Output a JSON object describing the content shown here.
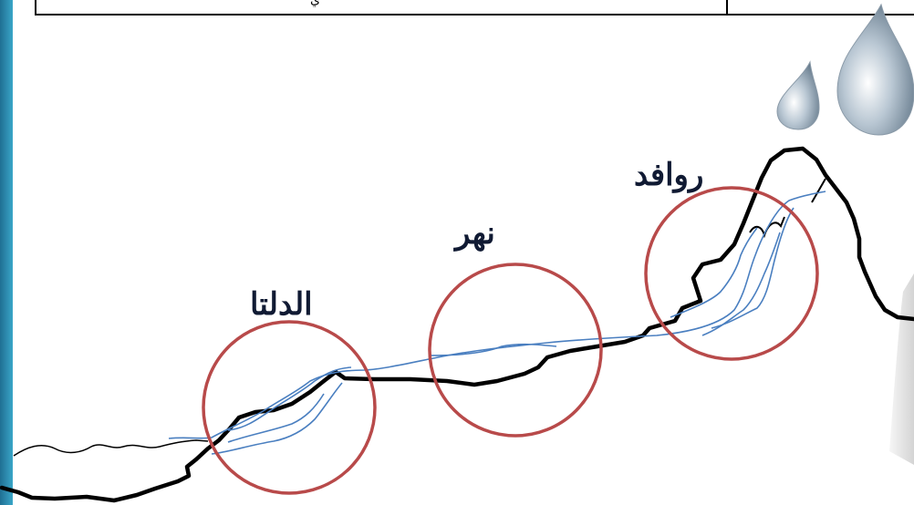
{
  "header": {
    "table_text": "ي"
  },
  "labels": {
    "tributaries": "روافد",
    "river": "نهر",
    "delta": "الدلتا"
  },
  "colors": {
    "circle": "#b84a4a",
    "river_line": "#4a7fc0",
    "terrain": "#000000",
    "side_bar": "#2a8fb3"
  },
  "icons": [
    "water-drop-icon",
    "water-drop-icon"
  ]
}
